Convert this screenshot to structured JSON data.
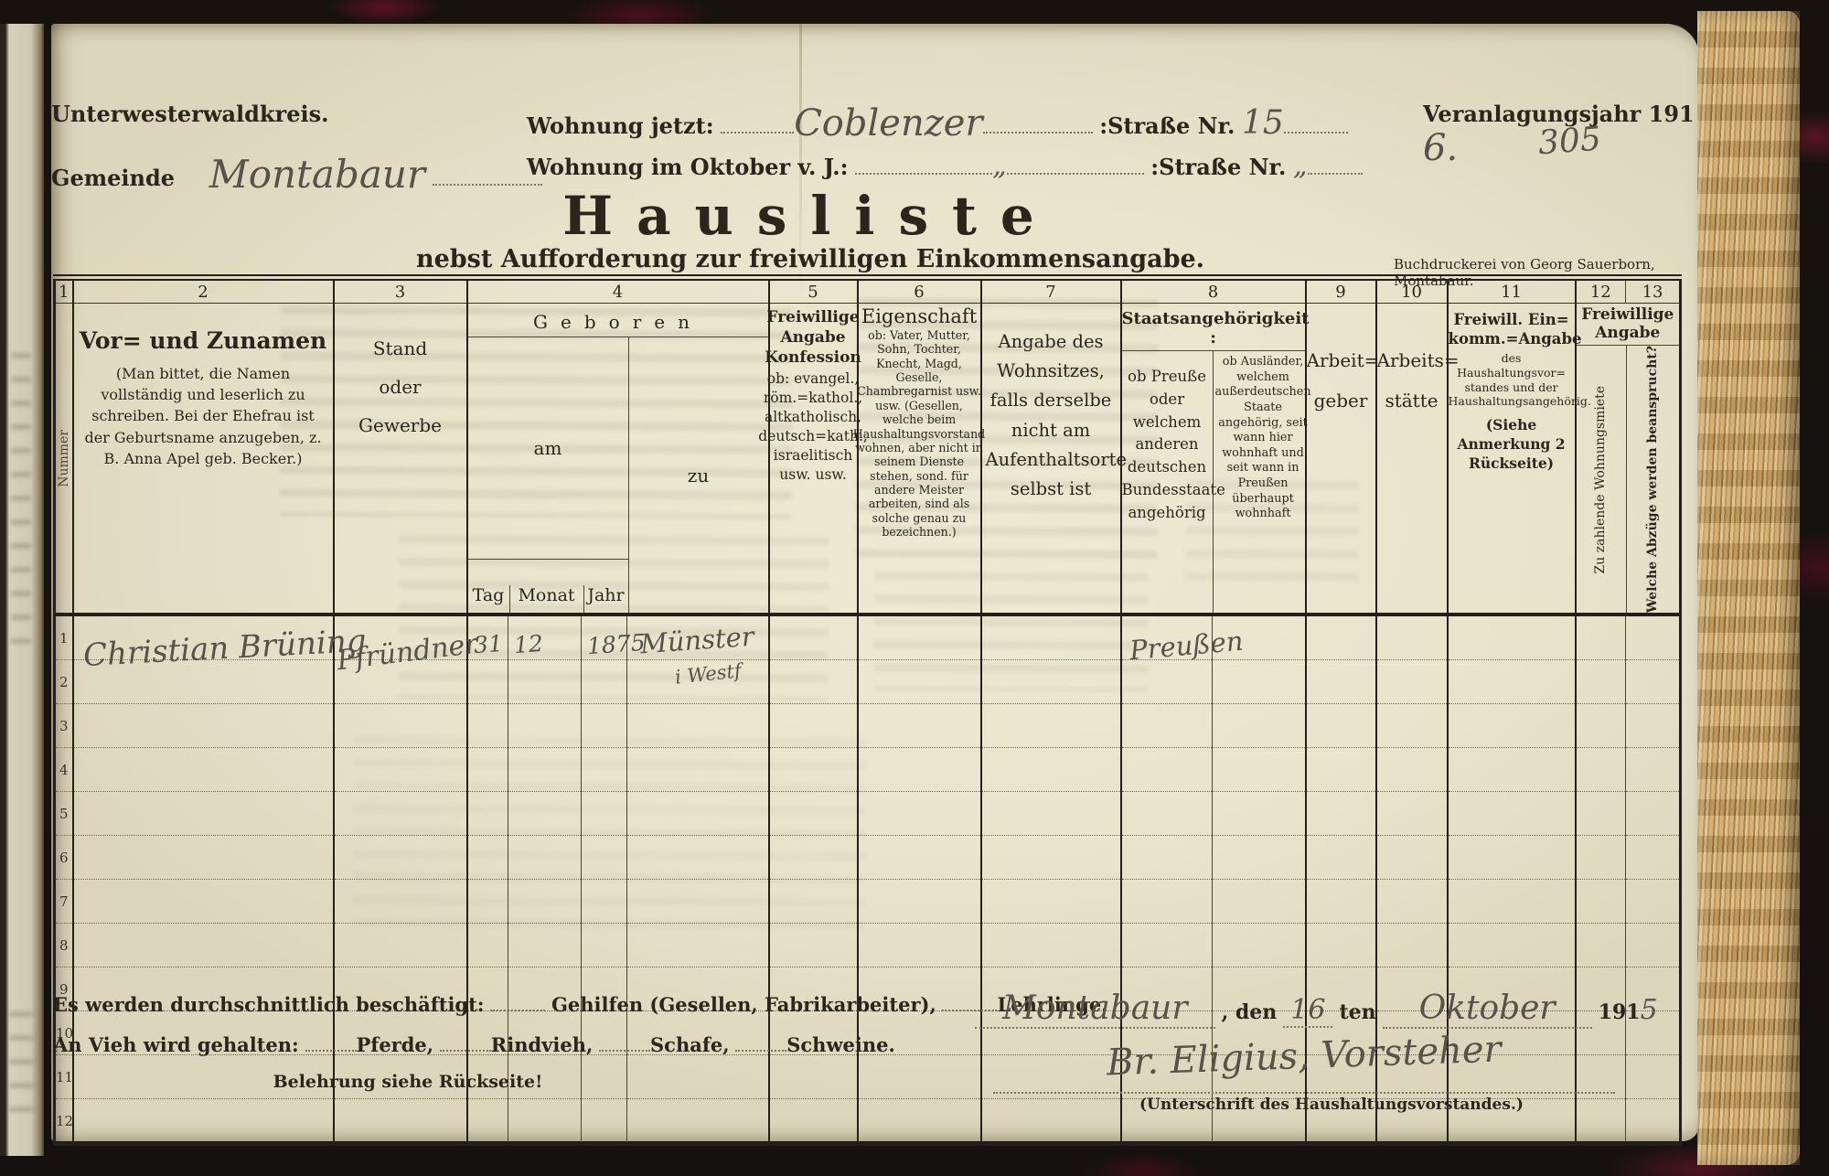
{
  "header": {
    "kreis": "Unterwesterwaldkreis.",
    "gemeinde_label": "Gemeinde",
    "gemeinde_value": "Montabaur",
    "wohnung_jetzt_label": "Wohnung jetzt:",
    "wohnung_jetzt_value": "Coblenzer",
    "strasse1_label": ":Straße Nr.",
    "strasse1_value": "15",
    "wohnung_okt_label": "Wohnung im Oktober v. J.:",
    "wohnung_okt_value": "„",
    "strasse2_label": ":Straße Nr.",
    "strasse2_value": "„",
    "jahr_label": "Veranlagungsjahr 191",
    "jahr_value": "6.",
    "folio": "305"
  },
  "title_block": {
    "title": "Hausliste",
    "subtitle": "nebst Aufforderung zur freiwilligen Einkommensangabe.",
    "printer": "Buchdruckerei von Georg Sauerborn, Montabaur."
  },
  "table": {
    "col_numbers": [
      "1",
      "2",
      "3",
      "4",
      "5",
      "6",
      "7",
      "8",
      "9",
      "10",
      "11",
      "12",
      "13"
    ],
    "header": {
      "col1_rot": "Nummer",
      "col2_title": "Vor= und Zunamen",
      "col2_note": "(Man bittet, die Namen vollständig und leserlich zu schreiben.  Bei der Ehefrau ist der Geburtsname anzugeben, z. B. Anna Apel  geb. Becker.)",
      "col3_l1": "Stand",
      "col3_l2": "oder",
      "col3_l3": "Gewerbe",
      "col4_title": "Geboren",
      "col4_am": "am",
      "col4_zu": "zu",
      "col4_tag": "Tag",
      "col4_monat": "Monat",
      "col4_jahr": "Jahr",
      "col5_title": "Freiwillige Angabe Konfession",
      "col5_note": "ob: evangel., röm.=kathol., altkatholisch, deutsch=kath., israelitisch usw. usw.",
      "col6_title": "Eigenschaft",
      "col6_note": "ob: Vater, Mutter, Sohn, Tochter, Knecht, Magd, Geselle, Chambregarnist usw. usw. (Gesellen, welche beim Haushaltungsvorstand wohnen, aber nicht in seinem Dienste stehen, sond. für andere Meister arbeiten, sind als solche genau zu bezeichnen.)",
      "col7_text": "Angabe des Wohnsitzes, falls derselbe nicht am Aufenthaltsorte selbst ist",
      "col8_title": "Staatsangehörigkeit :",
      "col8_left": "ob Preuße oder welchem anderen deutschen Bundesstaate angehörig",
      "col8_right": "ob Ausländer, welchem außerdeutschen Staate angehörig, seit wann hier wohnhaft und seit wann in Preußen überhaupt wohnhaft",
      "col9_l1": "Arbeit=",
      "col9_l2": "geber",
      "col10_l1": "Arbeits=",
      "col10_l2": "stätte",
      "col11_title": "Freiwill. Ein= komm.=Angabe",
      "col11_note": "des Haushaltungsvor= standes und der Haushaltungsangehörig.",
      "col11_note2": "(Siehe Anmerkung 2 Rückseite)",
      "col1213_title": "Freiwillige Angabe",
      "col12_rot": "Zu zahlende Wohnungsmiete",
      "col13_rot": "Welche Abzüge werden beansprucht?"
    },
    "rows": [
      {
        "nr": "1",
        "name": "Christian Brüning",
        "stand": "Pfründner",
        "tag": "31",
        "monat": "12",
        "jahr": "1875",
        "zu": "Münster",
        "zu2": "i Westf",
        "konfession": "",
        "eigenschaft": "",
        "wohnsitz": "",
        "staat_de": "Preußen",
        "staat_ausl": "",
        "arbeitgeber": "",
        "arbeitsstaette": "",
        "einkommen": "",
        "miete": "",
        "abzuege": ""
      },
      {
        "nr": "2"
      },
      {
        "nr": "3"
      },
      {
        "nr": "4"
      },
      {
        "nr": "5"
      },
      {
        "nr": "6"
      },
      {
        "nr": "7"
      },
      {
        "nr": "8"
      },
      {
        "nr": "9"
      },
      {
        "nr": "10"
      },
      {
        "nr": "11"
      },
      {
        "nr": "12"
      }
    ]
  },
  "footer": {
    "line1_a": "Es werden durchschnittlich beschäftigt:",
    "line1_b": "Gehilfen (Gesellen, Fabrikarbeiter),",
    "line1_c": "Lehrlinge.",
    "line2_a": "An Vieh wird gehalten:",
    "line2_b": "Pferde,",
    "line2_c": "Rindvieh,",
    "line2_d": "Schafe,",
    "line2_e": "Schweine.",
    "note": "Belehrung siehe Rückseite!",
    "place_value": "Montabaur",
    "den_label": ", den",
    "day_value": "16",
    "ten_label": "ten",
    "month_value": "Oktober",
    "year_label": "191",
    "year_value": "5",
    "signature": "Br. Eligius, Vorsteher",
    "signature_caption": "(Unterschrift des Haushaltungsvorstandes.)"
  }
}
